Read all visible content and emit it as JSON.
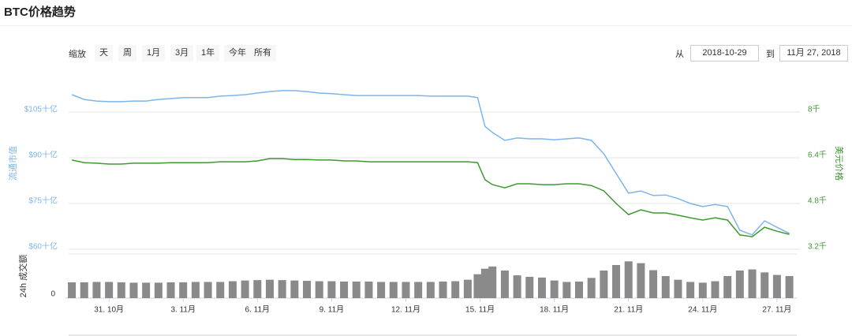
{
  "header": {
    "title": "BTC价格趋势"
  },
  "controls": {
    "zoom_label": "缩放",
    "zoom_buttons": [
      "天",
      "周",
      "1月",
      "3月",
      "1年",
      "今年",
      "所有"
    ],
    "from_label": "从",
    "from_date": "2018-10-29",
    "to_label": "到",
    "to_date": "11月 27, 2018"
  },
  "chart_data": {
    "type": "line",
    "grid": true,
    "x": [
      0.5,
      1,
      1.5,
      2,
      2.5,
      3,
      3.5,
      4,
      4.5,
      5,
      5.5,
      6,
      6.5,
      7,
      7.5,
      8,
      8.5,
      9,
      9.5,
      10,
      10.5,
      11,
      11.5,
      12,
      12.5,
      13,
      13.5,
      14,
      14.5,
      15,
      15.5,
      16,
      16.5,
      16.9,
      17.2,
      17.5,
      18,
      18.5,
      19,
      19.5,
      20,
      20.5,
      21,
      21.5,
      22,
      22.5,
      23,
      23.5,
      24,
      24.5,
      25,
      25.5,
      26,
      26.5,
      27,
      27.5,
      28,
      28.5,
      29,
      29.5
    ],
    "xlim": [
      0.37,
      29.8
    ],
    "xticks": [
      {
        "value": 2,
        "label": "31. 10月"
      },
      {
        "value": 5,
        "label": "3. 11月"
      },
      {
        "value": 8,
        "label": "6. 11月"
      },
      {
        "value": 11,
        "label": "9. 11月"
      },
      {
        "value": 14,
        "label": "12. 11月"
      },
      {
        "value": 17,
        "label": "15. 11月"
      },
      {
        "value": 20,
        "label": "18. 11月"
      },
      {
        "value": 23,
        "label": "21. 11月"
      },
      {
        "value": 26,
        "label": "24. 11月"
      },
      {
        "value": 29,
        "label": "27. 11月"
      }
    ],
    "ylabel": "流通市值",
    "ylim": [
      60,
      116.25
    ],
    "yticks": [
      {
        "value": 60,
        "label": "$60十亿"
      },
      {
        "value": 75,
        "label": "$75十亿"
      },
      {
        "value": 90,
        "label": "$90十亿"
      },
      {
        "value": 105,
        "label": "$105十亿"
      }
    ],
    "y2label": "美元价格",
    "y2lim": [
      3.2,
      9.2
    ],
    "y2ticks": [
      {
        "value": 3.2,
        "label": "3.2千"
      },
      {
        "value": 4.8,
        "label": "4.8千"
      },
      {
        "value": 6.4,
        "label": "6.4千"
      },
      {
        "value": 8,
        "label": "8千"
      }
    ],
    "y3label": "24h 成交额",
    "y3lim": [
      0,
      12
    ],
    "y3ticks": [
      0
    ],
    "series": [
      {
        "color": "#7cb5ec",
        "axis": "y",
        "values": [
          110.7,
          109.1,
          108.6,
          108.4,
          108.4,
          108.6,
          108.6,
          109.1,
          109.4,
          109.7,
          109.7,
          109.7,
          110.2,
          110.4,
          110.7,
          111.2,
          111.7,
          112.0,
          112.0,
          111.7,
          111.2,
          111.0,
          110.7,
          110.4,
          110.4,
          110.4,
          110.4,
          110.4,
          110.4,
          110.2,
          110.2,
          110.2,
          110.2,
          109.7,
          100.3,
          98.3,
          95.7,
          96.5,
          96.2,
          96.2,
          95.9,
          96.2,
          96.5,
          95.7,
          91.3,
          84.8,
          78.4,
          79.1,
          77.6,
          77.8,
          76.6,
          75.0,
          74.0,
          74.7,
          74.0,
          66.2,
          64.7,
          69.3,
          67.2,
          65.2
        ]
      },
      {
        "color": "#3d9a2e",
        "axis": "y2",
        "values": [
          6.32,
          6.23,
          6.21,
          6.18,
          6.18,
          6.21,
          6.21,
          6.21,
          6.23,
          6.23,
          6.23,
          6.23,
          6.26,
          6.26,
          6.26,
          6.29,
          6.37,
          6.37,
          6.34,
          6.34,
          6.32,
          6.32,
          6.29,
          6.29,
          6.26,
          6.26,
          6.26,
          6.26,
          6.26,
          6.26,
          6.26,
          6.26,
          6.26,
          6.23,
          5.63,
          5.46,
          5.35,
          5.49,
          5.49,
          5.46,
          5.46,
          5.49,
          5.49,
          5.43,
          5.24,
          4.8,
          4.41,
          4.58,
          4.47,
          4.47,
          4.39,
          4.3,
          4.22,
          4.3,
          4.22,
          3.7,
          3.64,
          3.97,
          3.83,
          3.72
        ]
      },
      {
        "color": "#8a8a8a",
        "axis": "y3",
        "type": "column",
        "values": [
          4.3,
          4.3,
          4.4,
          4.4,
          4.3,
          4.2,
          4.2,
          4.2,
          4.3,
          4.3,
          4.4,
          4.4,
          4.4,
          4.6,
          4.8,
          4.9,
          5.0,
          4.9,
          4.8,
          4.7,
          4.6,
          4.6,
          4.5,
          4.5,
          4.5,
          4.4,
          4.4,
          4.4,
          4.4,
          4.4,
          4.5,
          4.6,
          5.0,
          6.5,
          8.0,
          8.6,
          7.5,
          6.2,
          5.8,
          5.6,
          4.8,
          4.4,
          4.5,
          5.5,
          7.5,
          9.0,
          10.0,
          9.5,
          7.6,
          6.0,
          5.0,
          4.4,
          4.2,
          4.6,
          6.0,
          7.5,
          7.8,
          7.0,
          6.3,
          6.0
        ]
      }
    ]
  }
}
